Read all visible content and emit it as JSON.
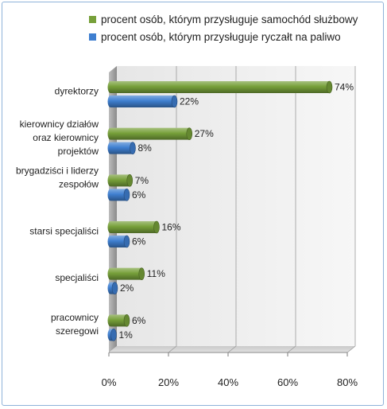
{
  "chart_data": {
    "type": "bar",
    "orientation": "horizontal",
    "style": "3d-cylinder",
    "categories": [
      [
        "dyrektorzy"
      ],
      [
        "kierownicy działów",
        "oraz kierownicy",
        "projektów"
      ],
      [
        "brygadziści i liderzy",
        "",
        "zespołów"
      ],
      [
        "starsi specjaliści"
      ],
      [
        "specjaliści"
      ],
      [
        "pracownicy",
        "szeregowi"
      ]
    ],
    "series": [
      {
        "name": "procent osób, którym przysługuje samochód służbowy",
        "color": "#77a03a",
        "values": [
          74,
          27,
          7,
          16,
          11,
          6
        ],
        "labels": [
          "74%",
          "27%",
          "7%",
          "16%",
          "11%",
          "6%"
        ]
      },
      {
        "name": "procent osób, którym przysługuje ryczałt na paliwo",
        "color": "#3f7fd0",
        "values": [
          22,
          8,
          6,
          6,
          2,
          1
        ],
        "labels": [
          "22%",
          "8%",
          "6%",
          "6%",
          "2%",
          "1%"
        ]
      }
    ],
    "xlim": [
      0,
      80
    ],
    "xticks": [
      "0%",
      "20%",
      "40%",
      "60%",
      "80%"
    ],
    "grid": true,
    "legend_position": "top"
  }
}
